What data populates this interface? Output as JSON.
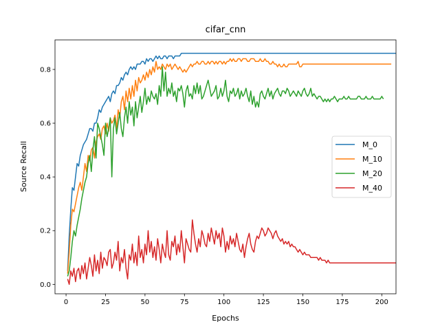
{
  "chart_data": {
    "type": "line",
    "title": "cifar_cnn",
    "xlabel": "Epochs",
    "ylabel": "Source Recall",
    "xlim": [
      -7,
      209
    ],
    "ylim": [
      -0.035,
      0.91
    ],
    "xticks": [
      0,
      25,
      50,
      75,
      100,
      125,
      150,
      175,
      200
    ],
    "yticks": [
      0.0,
      0.2,
      0.4,
      0.6,
      0.8
    ],
    "ytick_labels": [
      "0.0",
      "0.2",
      "0.4",
      "0.6",
      "0.8"
    ],
    "grid": false,
    "legend_position": "center-right",
    "series": [
      {
        "name": "M_0",
        "color": "#1f77b4",
        "values": [
          0.05,
          0.18,
          0.28,
          0.36,
          0.35,
          0.4,
          0.45,
          0.44,
          0.48,
          0.5,
          0.52,
          0.53,
          0.54,
          0.56,
          0.58,
          0.58,
          0.57,
          0.6,
          0.6,
          0.62,
          0.65,
          0.64,
          0.66,
          0.67,
          0.68,
          0.69,
          0.7,
          0.68,
          0.71,
          0.72,
          0.71,
          0.74,
          0.74,
          0.75,
          0.77,
          0.76,
          0.78,
          0.79,
          0.78,
          0.8,
          0.81,
          0.8,
          0.81,
          0.8,
          0.82,
          0.82,
          0.82,
          0.83,
          0.83,
          0.82,
          0.84,
          0.83,
          0.84,
          0.84,
          0.83,
          0.84,
          0.85,
          0.84,
          0.85,
          0.84,
          0.84,
          0.85,
          0.85,
          0.84,
          0.85,
          0.85,
          0.85,
          0.84,
          0.85,
          0.85,
          0.85,
          0.85,
          0.86,
          0.86,
          0.86,
          0.86,
          0.86,
          0.86,
          0.86,
          0.86,
          0.86,
          0.86,
          0.86,
          0.86,
          0.86,
          0.86,
          0.86,
          0.86,
          0.86,
          0.86,
          0.86,
          0.86,
          0.86,
          0.86,
          0.86,
          0.86,
          0.86,
          0.86,
          0.86,
          0.86,
          0.86,
          0.86,
          0.86,
          0.86,
          0.86,
          0.86,
          0.86,
          0.86,
          0.86,
          0.86,
          0.86,
          0.86,
          0.86,
          0.86,
          0.86,
          0.86,
          0.86,
          0.86,
          0.86,
          0.86,
          0.86,
          0.86,
          0.86,
          0.86,
          0.86,
          0.86,
          0.86,
          0.86,
          0.86,
          0.86,
          0.86,
          0.86,
          0.86,
          0.86,
          0.86,
          0.86,
          0.86,
          0.86,
          0.86,
          0.86,
          0.86,
          0.86,
          0.86,
          0.86,
          0.86,
          0.86,
          0.86,
          0.86,
          0.86,
          0.86,
          0.86,
          0.86,
          0.86,
          0.86,
          0.86,
          0.86,
          0.86,
          0.86,
          0.86,
          0.86,
          0.86,
          0.86,
          0.86,
          0.86,
          0.86,
          0.86,
          0.86,
          0.86,
          0.86,
          0.86,
          0.86,
          0.86,
          0.86,
          0.86,
          0.86,
          0.86,
          0.86,
          0.86,
          0.86,
          0.86,
          0.86,
          0.86,
          0.86,
          0.86,
          0.86,
          0.86,
          0.86,
          0.86,
          0.86,
          0.86,
          0.86,
          0.86,
          0.86,
          0.86,
          0.86,
          0.86,
          0.86,
          0.86,
          0.86,
          0.86,
          0.86,
          0.86,
          0.86,
          0.86,
          0.86,
          0.86,
          0.86,
          0.86,
          0.86
        ]
      },
      {
        "name": "M_10",
        "color": "#ff7f0e",
        "values": [
          0.04,
          0.12,
          0.22,
          0.28,
          0.27,
          0.3,
          0.33,
          0.36,
          0.38,
          0.35,
          0.4,
          0.45,
          0.42,
          0.48,
          0.46,
          0.5,
          0.51,
          0.47,
          0.53,
          0.55,
          0.56,
          0.54,
          0.58,
          0.59,
          0.56,
          0.6,
          0.57,
          0.62,
          0.6,
          0.61,
          0.63,
          0.58,
          0.65,
          0.62,
          0.68,
          0.7,
          0.65,
          0.72,
          0.68,
          0.73,
          0.69,
          0.74,
          0.7,
          0.76,
          0.72,
          0.77,
          0.75,
          0.76,
          0.78,
          0.76,
          0.79,
          0.77,
          0.8,
          0.78,
          0.81,
          0.79,
          0.83,
          0.8,
          0.81,
          0.8,
          0.82,
          0.81,
          0.8,
          0.82,
          0.81,
          0.82,
          0.8,
          0.81,
          0.82,
          0.81,
          0.8,
          0.81,
          0.8,
          0.79,
          0.8,
          0.79,
          0.8,
          0.81,
          0.82,
          0.81,
          0.82,
          0.82,
          0.83,
          0.82,
          0.82,
          0.83,
          0.83,
          0.82,
          0.82,
          0.83,
          0.82,
          0.83,
          0.83,
          0.82,
          0.83,
          0.82,
          0.83,
          0.83,
          0.82,
          0.83,
          0.82,
          0.83,
          0.83,
          0.84,
          0.83,
          0.84,
          0.83,
          0.83,
          0.84,
          0.84,
          0.83,
          0.84,
          0.84,
          0.84,
          0.83,
          0.83,
          0.84,
          0.84,
          0.84,
          0.83,
          0.83,
          0.83,
          0.84,
          0.83,
          0.83,
          0.84,
          0.83,
          0.83,
          0.82,
          0.82,
          0.83,
          0.82,
          0.82,
          0.81,
          0.82,
          0.81,
          0.81,
          0.82,
          0.81,
          0.81,
          0.82,
          0.82,
          0.82,
          0.82,
          0.82,
          0.82,
          0.83,
          0.81,
          0.81,
          0.82,
          0.82,
          0.82,
          0.82,
          0.82,
          0.82,
          0.82,
          0.82,
          0.82,
          0.82,
          0.82,
          0.82,
          0.82,
          0.82,
          0.82,
          0.82,
          0.82,
          0.82,
          0.82,
          0.82,
          0.82,
          0.82,
          0.82,
          0.82,
          0.82,
          0.82,
          0.82,
          0.82,
          0.82,
          0.82,
          0.82,
          0.82,
          0.82,
          0.82,
          0.82,
          0.82,
          0.82,
          0.82,
          0.82,
          0.82,
          0.82,
          0.82,
          0.82,
          0.82,
          0.82,
          0.82,
          0.82,
          0.82,
          0.82,
          0.82,
          0.82,
          0.82,
          0.82,
          0.82,
          0.82,
          0.82,
          0.82
        ]
      },
      {
        "name": "M_20",
        "color": "#2ca02c",
        "values": [
          0.03,
          0.05,
          0.1,
          0.16,
          0.2,
          0.18,
          0.22,
          0.25,
          0.28,
          0.32,
          0.35,
          0.38,
          0.4,
          0.45,
          0.48,
          0.42,
          0.5,
          0.55,
          0.47,
          0.6,
          0.58,
          0.55,
          0.52,
          0.48,
          0.6,
          0.55,
          0.58,
          0.62,
          0.4,
          0.58,
          0.62,
          0.56,
          0.6,
          0.64,
          0.58,
          0.55,
          0.62,
          0.66,
          0.6,
          0.68,
          0.63,
          0.66,
          0.59,
          0.68,
          0.62,
          0.66,
          0.7,
          0.64,
          0.68,
          0.73,
          0.67,
          0.7,
          0.68,
          0.72,
          0.7,
          0.69,
          0.71,
          0.67,
          0.74,
          0.7,
          0.81,
          0.72,
          0.79,
          0.7,
          0.73,
          0.71,
          0.75,
          0.7,
          0.72,
          0.68,
          0.73,
          0.72,
          0.74,
          0.71,
          0.66,
          0.72,
          0.74,
          0.7,
          0.71,
          0.69,
          0.74,
          0.71,
          0.75,
          0.71,
          0.74,
          0.69,
          0.7,
          0.72,
          0.74,
          0.76,
          0.73,
          0.7,
          0.71,
          0.72,
          0.74,
          0.69,
          0.7,
          0.73,
          0.7,
          0.72,
          0.76,
          0.7,
          0.68,
          0.72,
          0.71,
          0.73,
          0.7,
          0.71,
          0.73,
          0.69,
          0.72,
          0.7,
          0.71,
          0.73,
          0.7,
          0.68,
          0.72,
          0.67,
          0.7,
          0.66,
          0.68,
          0.66,
          0.71,
          0.72,
          0.7,
          0.69,
          0.71,
          0.73,
          0.7,
          0.72,
          0.69,
          0.71,
          0.72,
          0.73,
          0.71,
          0.7,
          0.72,
          0.72,
          0.71,
          0.73,
          0.72,
          0.7,
          0.71,
          0.72,
          0.71,
          0.7,
          0.72,
          0.71,
          0.7,
          0.72,
          0.73,
          0.71,
          0.7,
          0.71,
          0.73,
          0.7,
          0.71,
          0.7,
          0.69,
          0.7,
          0.7,
          0.69,
          0.68,
          0.69,
          0.68,
          0.69,
          0.68,
          0.69,
          0.69,
          0.7,
          0.69,
          0.68,
          0.69,
          0.69,
          0.69,
          0.7,
          0.69,
          0.69,
          0.7,
          0.69,
          0.69,
          0.69,
          0.69,
          0.69,
          0.7,
          0.7,
          0.69,
          0.69,
          0.69,
          0.7,
          0.69,
          0.69,
          0.69,
          0.7,
          0.69,
          0.69,
          0.69,
          0.69,
          0.69,
          0.7,
          0.69
        ]
      },
      {
        "name": "M_40",
        "color": "#d62728",
        "values": [
          0.02,
          0.0,
          0.05,
          0.03,
          0.06,
          0.01,
          0.05,
          0.06,
          0.02,
          0.07,
          0.04,
          0.08,
          0.02,
          0.06,
          0.1,
          0.07,
          0.03,
          0.11,
          0.05,
          0.09,
          0.04,
          0.12,
          0.06,
          0.1,
          0.09,
          0.07,
          0.12,
          0.13,
          0.06,
          0.08,
          0.12,
          0.09,
          0.16,
          0.05,
          0.1,
          0.08,
          0.13,
          0.06,
          0.02,
          0.11,
          0.09,
          0.15,
          0.08,
          0.12,
          0.07,
          0.18,
          0.1,
          0.13,
          0.08,
          0.15,
          0.11,
          0.2,
          0.12,
          0.16,
          0.1,
          0.14,
          0.09,
          0.17,
          0.13,
          0.08,
          0.15,
          0.12,
          0.1,
          0.2,
          0.11,
          0.09,
          0.16,
          0.14,
          0.18,
          0.11,
          0.15,
          0.12,
          0.2,
          0.14,
          0.08,
          0.17,
          0.15,
          0.13,
          0.12,
          0.24,
          0.19,
          0.15,
          0.12,
          0.17,
          0.14,
          0.2,
          0.18,
          0.15,
          0.14,
          0.19,
          0.16,
          0.21,
          0.18,
          0.15,
          0.2,
          0.17,
          0.19,
          0.14,
          0.21,
          0.18,
          0.12,
          0.16,
          0.13,
          0.18,
          0.15,
          0.17,
          0.14,
          0.19,
          0.16,
          0.13,
          0.12,
          0.15,
          0.1,
          0.14,
          0.17,
          0.19,
          0.15,
          0.13,
          0.12,
          0.16,
          0.18,
          0.17,
          0.19,
          0.21,
          0.2,
          0.18,
          0.19,
          0.21,
          0.2,
          0.19,
          0.17,
          0.19,
          0.2,
          0.18,
          0.17,
          0.16,
          0.17,
          0.15,
          0.16,
          0.15,
          0.16,
          0.14,
          0.15,
          0.14,
          0.14,
          0.13,
          0.12,
          0.13,
          0.12,
          0.11,
          0.12,
          0.11,
          0.11,
          0.11,
          0.1,
          0.1,
          0.1,
          0.1,
          0.1,
          0.09,
          0.1,
          0.09,
          0.09,
          0.09,
          0.08,
          0.09,
          0.08,
          0.08,
          0.08,
          0.08,
          0.08,
          0.08,
          0.08,
          0.08,
          0.08,
          0.08,
          0.08,
          0.08,
          0.08,
          0.08,
          0.08,
          0.08,
          0.08,
          0.08,
          0.08,
          0.08,
          0.08,
          0.08,
          0.08,
          0.08,
          0.08,
          0.08,
          0.08,
          0.08,
          0.08,
          0.08,
          0.08,
          0.08,
          0.08,
          0.08,
          0.08,
          0.08,
          0.08,
          0.08,
          0.08,
          0.08,
          0.08,
          0.08,
          0.08
        ]
      }
    ]
  }
}
